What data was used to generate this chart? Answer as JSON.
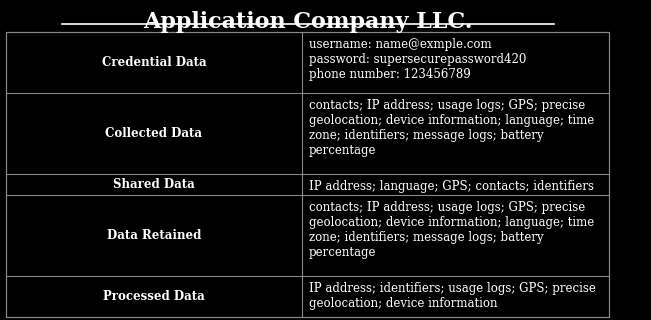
{
  "title": "Application Company LLC.",
  "bg_color": "#000000",
  "text_color": "#ffffff",
  "border_color": "#888888",
  "title_fontsize": 16,
  "cell_fontsize": 8.5,
  "rows": [
    {
      "label": "Credential Data",
      "value": "username: name@exmple.com\npassword: supersecurepassword420\nphone number: 123456789"
    },
    {
      "label": "Collected Data",
      "value": "contacts; IP address; usage logs; GPS; precise\ngeolocation; device information; language; time\nzone; identifiers; message logs; battery\npercentage"
    },
    {
      "label": "Shared Data",
      "value": "IP address; language; GPS; contacts; identifiers"
    },
    {
      "label": "Data Retained",
      "value": "contacts; IP address; usage logs; GPS; precise\ngeolocation; device information; language; time\nzone; identifiers; message logs; battery\npercentage"
    },
    {
      "label": "Processed Data",
      "value": "IP address; identifiers; usage logs; GPS; precise\ngeolocation; device information"
    }
  ],
  "col_split": 0.49
}
